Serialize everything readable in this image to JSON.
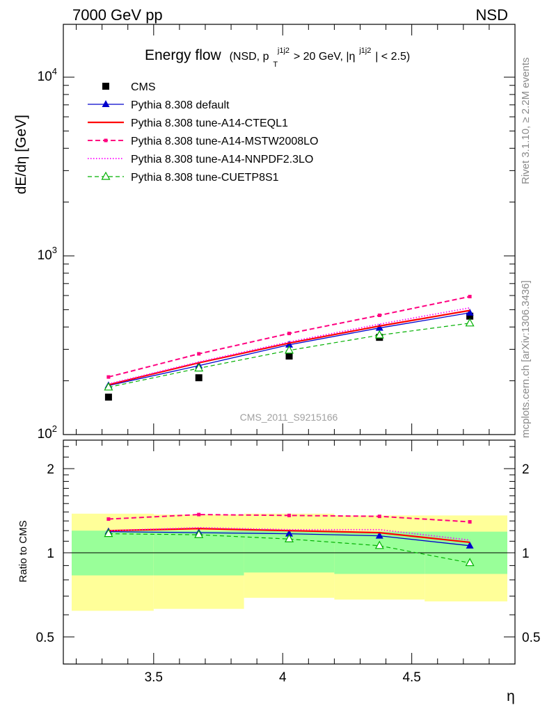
{
  "header": {
    "left": "7000 GeV pp",
    "right": "NSD"
  },
  "side_labels": {
    "rivet": "Rivet 3.1.10, ≥ 2.2M events",
    "mcplots": "mcplots.cern.ch [arXiv:1306.3436]"
  },
  "watermark": "CMS_2011_S9215166",
  "chart_data": [
    {
      "type": "line",
      "panel": "main",
      "title": "Energy flow",
      "title_detail_parts": [
        "(NSD, p",
        "T",
        "j1j2",
        " > 20 GeV, |η",
        "j1j2",
        "| < 2.5)"
      ],
      "ylabel": "dE/dη [GeV]",
      "yscale": "log",
      "ylim": [
        100,
        20000
      ],
      "xlim": [
        3.15,
        4.9
      ],
      "yticks": [
        100,
        1000,
        10000
      ],
      "ytick_labels": [
        {
          "base": "10",
          "exp": "2"
        },
        {
          "base": "10",
          "exp": "3"
        },
        {
          "base": "10",
          "exp": "4"
        }
      ],
      "x": [
        3.325,
        3.675,
        4.025,
        4.375,
        4.725
      ],
      "x_bins": [
        [
          3.15,
          3.5
        ],
        [
          3.5,
          3.85
        ],
        [
          3.85,
          4.2
        ],
        [
          4.2,
          4.55
        ],
        [
          4.55,
          4.9
        ]
      ],
      "legend_position": "top-left",
      "series": [
        {
          "name": "CMS",
          "values": [
            162,
            208,
            275,
            350,
            460
          ],
          "color": "#000000",
          "style": "points",
          "marker": "square"
        },
        {
          "name": "Pythia 8.308 default",
          "values": [
            188,
            243,
            318,
            395,
            480
          ],
          "color": "#0000cc",
          "style": "solid-thin",
          "marker": "triangle-filled"
        },
        {
          "name": "Pythia 8.308 tune-A14-CTEQL1",
          "values": [
            190,
            252,
            325,
            405,
            495
          ],
          "color": "#ff0000",
          "style": "solid-thick",
          "marker": "none"
        },
        {
          "name": "Pythia 8.308 tune-A14-MSTW2008LO",
          "values": [
            210,
            283,
            368,
            465,
            592
          ],
          "color": "#ff0080",
          "style": "dashed",
          "marker": "small-square"
        },
        {
          "name": "Pythia 8.308 tune-A14-NNPDF2.3LO",
          "values": [
            192,
            255,
            330,
            415,
            512
          ],
          "color": "#ff00ff",
          "style": "dotted",
          "marker": "none"
        },
        {
          "name": "Pythia 8.308 tune-CUETP8S1",
          "values": [
            184,
            235,
            296,
            360,
            420
          ],
          "color": "#00b000",
          "style": "dashed-thin",
          "marker": "triangle-open"
        }
      ]
    },
    {
      "type": "line",
      "panel": "ratio",
      "ylabel": "Ratio to CMS",
      "yscale": "log",
      "ylim": [
        0.4,
        2.5
      ],
      "xlim": [
        3.15,
        4.9
      ],
      "xlabel": "η",
      "xticks": [
        3.5,
        4,
        4.5
      ],
      "xtick_labels": [
        "3.5",
        "4",
        "4.5"
      ],
      "yticks": [
        0.5,
        1,
        2
      ],
      "ytick_labels": [
        "0.5",
        "1",
        "2"
      ],
      "x": [
        3.325,
        3.675,
        4.025,
        4.375,
        4.725
      ],
      "band_bins": [
        [
          3.15,
          3.5
        ],
        [
          3.5,
          3.85
        ],
        [
          3.85,
          4.2
        ],
        [
          4.2,
          4.55
        ],
        [
          4.55,
          4.9
        ]
      ],
      "band_stat_lo": [
        0.83,
        0.83,
        0.85,
        0.84,
        0.84
      ],
      "band_stat_hi": [
        1.2,
        1.2,
        1.2,
        1.19,
        1.19
      ],
      "band_total_lo": [
        0.62,
        0.63,
        0.69,
        0.68,
        0.67
      ],
      "band_total_hi": [
        1.38,
        1.37,
        1.38,
        1.36,
        1.36
      ],
      "band_colors": {
        "stat": "#99ff99",
        "total": "#ffff99"
      },
      "series": [
        {
          "name": "Pythia 8.308 default",
          "values": [
            1.19,
            1.18,
            1.17,
            1.15,
            1.06
          ],
          "color": "#0000cc",
          "style": "solid-thin",
          "marker": "triangle-filled"
        },
        {
          "name": "Pythia 8.308 tune-A14-CTEQL1",
          "values": [
            1.2,
            1.22,
            1.2,
            1.18,
            1.09
          ],
          "color": "#ff0000",
          "style": "solid-thick",
          "marker": "none"
        },
        {
          "name": "Pythia 8.308 tune-A14-MSTW2008LO",
          "values": [
            1.32,
            1.37,
            1.36,
            1.35,
            1.29
          ],
          "color": "#ff0080",
          "style": "dashed",
          "marker": "small-square"
        },
        {
          "name": "Pythia 8.308 tune-A14-NNPDF2.3LO",
          "values": [
            1.2,
            1.23,
            1.21,
            1.21,
            1.11
          ],
          "color": "#ff00ff",
          "style": "dotted",
          "marker": "none"
        },
        {
          "name": "Pythia 8.308 tune-CUETP8S1",
          "values": [
            1.17,
            1.16,
            1.12,
            1.06,
            0.92
          ],
          "color": "#00b000",
          "style": "dashed-thin",
          "marker": "triangle-open"
        }
      ]
    }
  ]
}
